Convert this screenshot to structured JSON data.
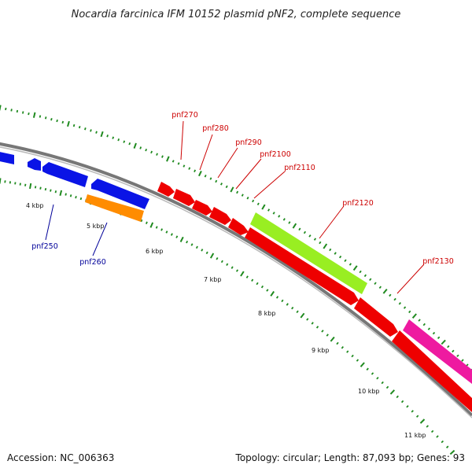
{
  "header": {
    "title": "Nocardia farcinica IFM 10152 plasmid pNF2, complete sequence"
  },
  "footer": {
    "accession": "Accession: NC_006363",
    "summary": "Topology: circular; Length: 87,093 bp; Genes: 93"
  },
  "colors": {
    "backbone": "#808080",
    "tick": "#1f8a1f",
    "blue_gene": "#0a14e6",
    "red_gene": "#ee0000",
    "orange_gene": "#ff8c00",
    "green_gene": "#99ee22",
    "magenta_gene": "#ee1aa0",
    "red_label": "#cc0000",
    "blue_label": "#000099"
  },
  "map": {
    "kbp_labels": [
      "4 kbp",
      "5 kbp",
      "6 kbp",
      "7 kbp",
      "8 kbp",
      "9 kbp",
      "10 kbp",
      "11 kbp"
    ],
    "gene_labels_outer": [
      "pnf270",
      "pnf280",
      "pnf290",
      "pnf2100",
      "pnf2110",
      "pnf2120",
      "pnf2130"
    ],
    "gene_labels_inner": [
      "pnf250",
      "pnf260"
    ]
  }
}
